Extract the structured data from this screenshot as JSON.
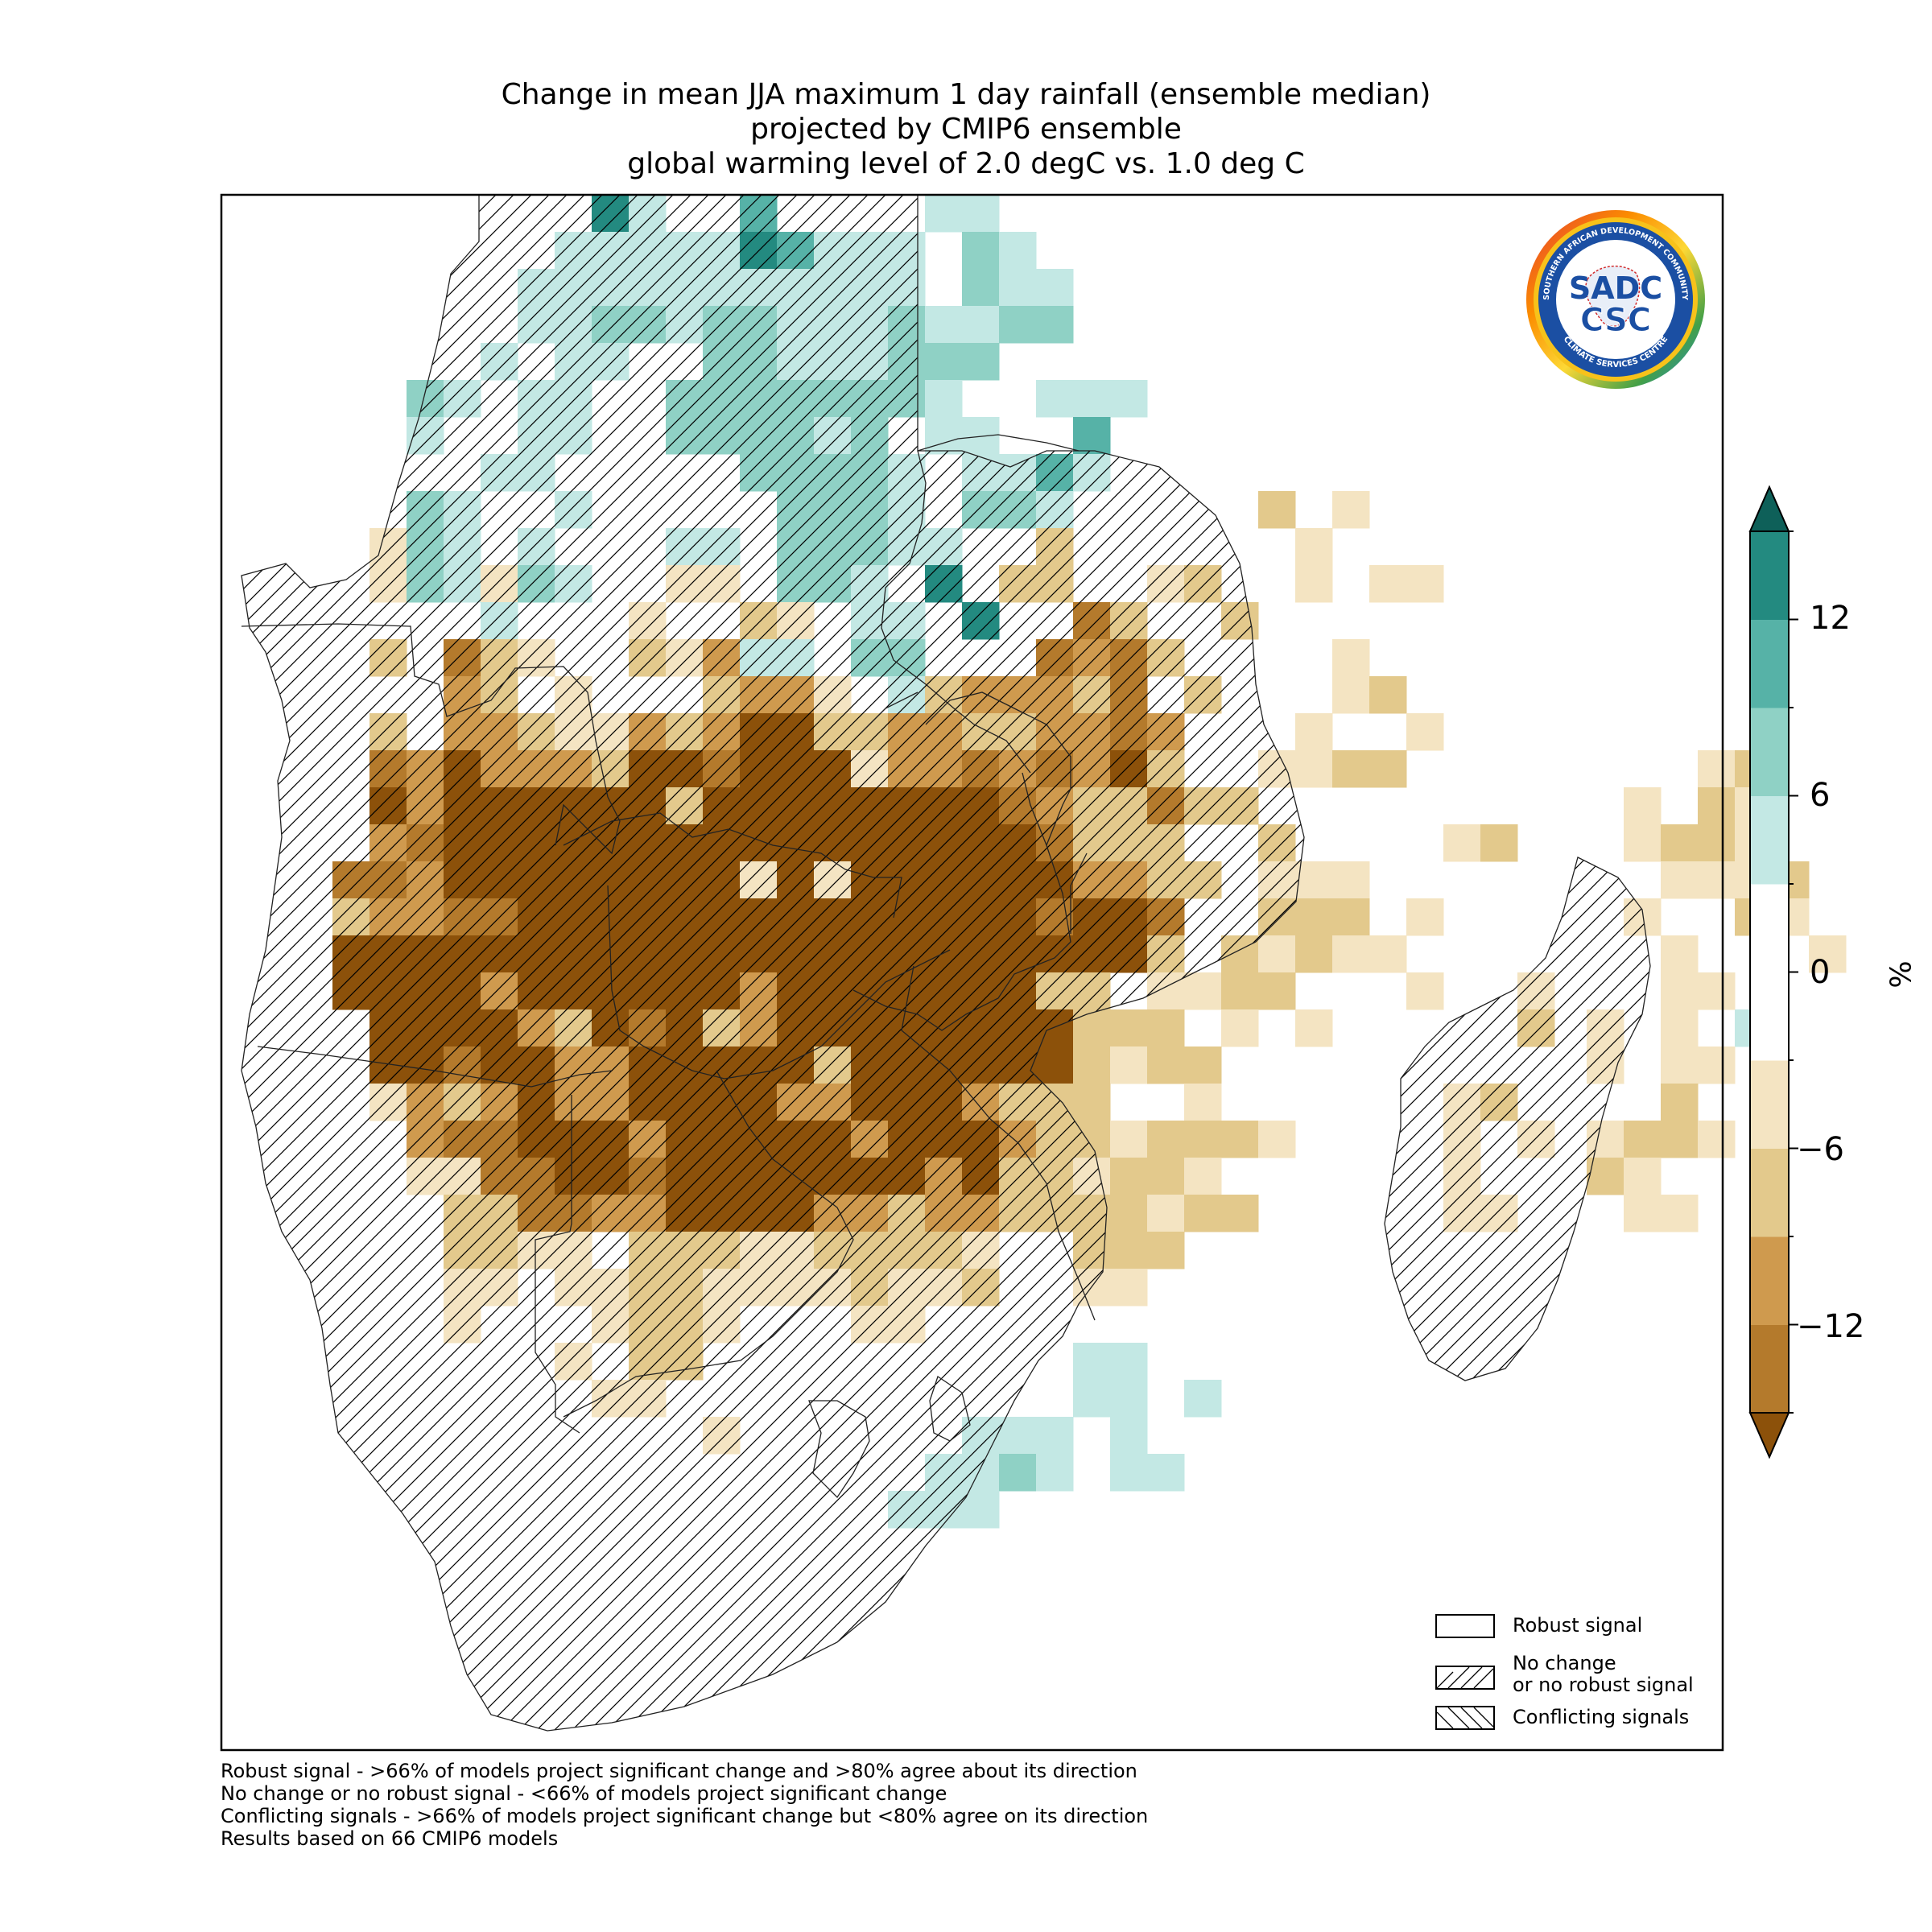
{
  "title": {
    "line1": "Change in mean JJA maximum 1 day rainfall (ensemble median)",
    "line2": "projected by CMIP6 ensemble",
    "line3": "global warming level of 2.0 degC vs. 1.0 deg C"
  },
  "colorbar": {
    "unit": "%",
    "ticks": [
      "12",
      "6",
      "0",
      "−6",
      "−12"
    ],
    "levels": [
      -15,
      -12,
      -9,
      -6,
      -3,
      3,
      6,
      9,
      12,
      15
    ],
    "colors": [
      "#8c510a",
      "#b47a2c",
      "#cf9a4e",
      "#e3c98c",
      "#f4e4c2",
      "#ffffff",
      "#c3e8e4",
      "#8fd1c5",
      "#56b2a7",
      "#238a80",
      "#0e6059"
    ]
  },
  "legend": {
    "robust": "Robust signal",
    "no_change_1": "No change",
    "no_change_2": "or no robust signal",
    "conflicting": "Conflicting signals"
  },
  "footnotes": {
    "line1": "Robust signal - >66% of models project significant change and >80% agree about its direction",
    "line2": "No change or no robust signal - <66% of models project significant change",
    "line3": "Conflicting signals - >66% of models project significant change but <80% agree on its direction",
    "line4": "Results based on 66 CMIP6 models"
  },
  "logo": {
    "top_text": "SOUTHERN AFRICAN DEVELOPMENT COMMUNITY",
    "bottom_text": "CLIMATE SERVICES CENTRE",
    "mark_top": "SADC",
    "mark_bottom": "CSC"
  }
}
